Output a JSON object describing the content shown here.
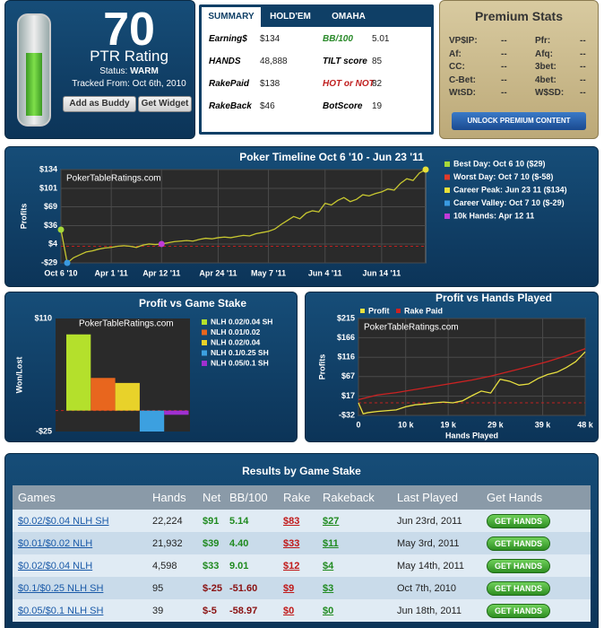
{
  "rating_panel": {
    "rating": 70,
    "label": "PTR Rating",
    "status_label": "Status:",
    "status": "WARM",
    "tracked": "Tracked From: Oct 6th, 2010",
    "buttons": [
      "Add as Buddy",
      "Get Widget"
    ]
  },
  "summary": {
    "tabs": [
      "SUMMARY",
      "HOLD'EM",
      "OMAHA"
    ],
    "stats": [
      {
        "label": "Earning$",
        "value": "$134"
      },
      {
        "label": "BB/100",
        "value": "5.01"
      },
      {
        "label": "HANDS",
        "value": "48,888"
      },
      {
        "label": "TILT score",
        "value": "85"
      },
      {
        "label": "RakePaid",
        "value": "$138"
      },
      {
        "label": "HOT or NOT",
        "value": "82"
      },
      {
        "label": "RakeBack",
        "value": "$46"
      },
      {
        "label": "BotScore",
        "value": "19"
      }
    ]
  },
  "premium": {
    "title": "Premium Stats",
    "stats": [
      [
        "VP$IP:",
        "--",
        "Pfr:",
        "--"
      ],
      [
        "Af:",
        "--",
        "Afq:",
        "--"
      ],
      [
        "CC:",
        "--",
        "3bet:",
        "--"
      ],
      [
        "C-Bet:",
        "--",
        "4bet:",
        "--"
      ],
      [
        "WtSD:",
        "--",
        "W$SD:",
        "--"
      ]
    ],
    "button": "UNLOCK PREMIUM CONTENT"
  },
  "chart_data": [
    {
      "type": "line",
      "title": "Poker Timeline Oct 6 '10 - Jun 23 '11",
      "y_label": "Profits",
      "watermark": "PokerTableRatings.com",
      "categories": [
        "Oct 6 '10",
        null,
        null,
        null,
        null,
        null,
        null,
        null,
        "Apr 1 '11",
        null,
        null,
        null,
        null,
        null,
        null,
        null,
        "Apr 12 '11",
        null,
        null,
        null,
        null,
        null,
        null,
        null,
        null,
        "Apr 24 '11",
        null,
        null,
        null,
        null,
        null,
        null,
        null,
        "May 7 '11",
        null,
        null,
        null,
        null,
        null,
        null,
        null,
        null,
        "Jun 4 '11",
        null,
        null,
        null,
        null,
        null,
        null,
        null,
        null,
        "Jun 14 '11",
        null,
        null,
        null,
        null,
        null,
        null,
        null
      ],
      "series": [
        {
          "color": "#c8c830",
          "values": [
            29,
            -29,
            -20,
            -15,
            -10,
            -8,
            -5,
            -3,
            -2,
            0,
            1,
            0,
            -2,
            2,
            4,
            3,
            4,
            6,
            8,
            9,
            10,
            9,
            12,
            14,
            13,
            15,
            16,
            15,
            17,
            19,
            18,
            22,
            24,
            26,
            30,
            38,
            45,
            52,
            48,
            58,
            62,
            60,
            75,
            72,
            80,
            85,
            78,
            82,
            90,
            88,
            92,
            95,
            100,
            98,
            110,
            118,
            115,
            128,
            134
          ]
        }
      ],
      "ylim": [
        -29,
        134
      ],
      "yticks": [
        {
          "value": 134,
          "label": "$134"
        },
        {
          "value": 101,
          "label": "$101"
        },
        {
          "value": 69,
          "label": "$69"
        },
        {
          "value": 36,
          "label": "$36"
        },
        {
          "value": 4,
          "label": "$4"
        },
        {
          "value": -29,
          "label": "-$29"
        }
      ],
      "markers": [
        {
          "label": "Best Day: Oct 6 10 ($29)",
          "color": "#a6d83a",
          "point": 0
        },
        {
          "label": "Worst Day: Oct 7 10 ($-58)",
          "color": "#e03a2a"
        },
        {
          "label": "Career Peak: Jun 23 11 ($134)",
          "color": "#e8e03a",
          "point": 58
        },
        {
          "label": "Career Valley: Oct 7 10 ($-29)",
          "color": "#3a9ae0",
          "point": 1
        },
        {
          "label": "10k Hands: Apr 12 11",
          "color": "#c03ad8",
          "point": 16
        }
      ]
    },
    {
      "type": "bar",
      "title": "Profit vs Game Stake",
      "y_label": "Won/Lost",
      "watermark": "PokerTableRatings.com",
      "categories": [
        "NLH 0.02/0.04 SH",
        "NLH 0.01/0.02",
        "NLH 0.02/0.04",
        "NLH 0.1/0.25 SH",
        "NLH 0.05/0.1 SH"
      ],
      "values": [
        91,
        39,
        33,
        -25,
        -5
      ],
      "colors": [
        "#b4e02c",
        "#e8661e",
        "#e8d22a",
        "#3ca0e0",
        "#a030d0"
      ],
      "ylim": [
        -25,
        110
      ],
      "yticks": [
        {
          "value": 110,
          "label": "$110"
        },
        {
          "value": -25,
          "label": "-$25"
        }
      ]
    },
    {
      "type": "line",
      "title": "Profit vs Hands Played",
      "x_label": "Hands Played",
      "y_label": "Profits",
      "watermark": "PokerTableRatings.com",
      "series": [
        {
          "name": "Profit",
          "color": "#e8e040",
          "x": [
            0,
            1,
            2,
            4,
            6,
            8,
            10,
            12,
            14,
            16,
            18,
            20,
            22,
            24,
            26,
            28,
            30,
            32,
            34,
            36,
            38,
            40,
            42,
            44,
            46,
            48
          ],
          "values": [
            0,
            -28,
            -25,
            -22,
            -20,
            -18,
            -10,
            -5,
            -3,
            0,
            2,
            0,
            5,
            18,
            30,
            25,
            60,
            55,
            45,
            48,
            62,
            72,
            78,
            90,
            105,
            130
          ]
        },
        {
          "name": "Rake Paid",
          "color": "#cc2222",
          "x": [
            0,
            4,
            8,
            12,
            16,
            20,
            24,
            28,
            32,
            36,
            40,
            44,
            48
          ],
          "values": [
            8,
            20,
            26,
            34,
            42,
            50,
            58,
            68,
            80,
            92,
            105,
            120,
            138
          ]
        }
      ],
      "xlim": [
        0,
        48
      ],
      "xticks": [
        0,
        {
          "value": 10,
          "label": "10 k"
        },
        {
          "value": 19,
          "label": "19 k"
        },
        {
          "value": 29,
          "label": "29 k"
        },
        {
          "value": 39,
          "label": "39 k"
        },
        {
          "value": 48,
          "label": "48 k"
        }
      ],
      "ylim": [
        -32,
        215
      ],
      "yticks": [
        {
          "value": 215,
          "label": "$215"
        },
        {
          "value": 166,
          "label": "$166"
        },
        {
          "value": 116,
          "label": "$116"
        },
        {
          "value": 67,
          "label": "$67"
        },
        {
          "value": 17,
          "label": "$17"
        },
        {
          "value": -32,
          "label": "-$32"
        }
      ]
    }
  ],
  "table": {
    "title": "Results by Game Stake",
    "header": [
      "Games",
      "Hands",
      "Net",
      "BB/100",
      "Rake",
      "Rakeback",
      "Last Played",
      "Get Hands"
    ],
    "rows": [
      [
        "$0.02/$0.04 NLH SH",
        "22,224",
        "$91",
        "5.14",
        "$83",
        "$27",
        "Jun 23rd, 2011",
        "GET HANDS"
      ],
      [
        "$0.01/$0.02 NLH",
        "21,932",
        "$39",
        "4.40",
        "$33",
        "$11",
        "May 3rd, 2011",
        "GET HANDS"
      ],
      [
        "$0.02/$0.04 NLH",
        "4,598",
        "$33",
        "9.01",
        "$12",
        "$4",
        "May 14th, 2011",
        "GET HANDS"
      ],
      [
        "$0.1/$0.25 NLH SH",
        "95",
        "$-25",
        "-51.60",
        "$9",
        "$3",
        "Oct 7th, 2010",
        "GET HANDS"
      ],
      [
        "$0.05/$0.1 NLH SH",
        "39",
        "$-5",
        "-58.97",
        "$0",
        "$0",
        "Jun 18th, 2011",
        "GET HANDS"
      ]
    ]
  }
}
